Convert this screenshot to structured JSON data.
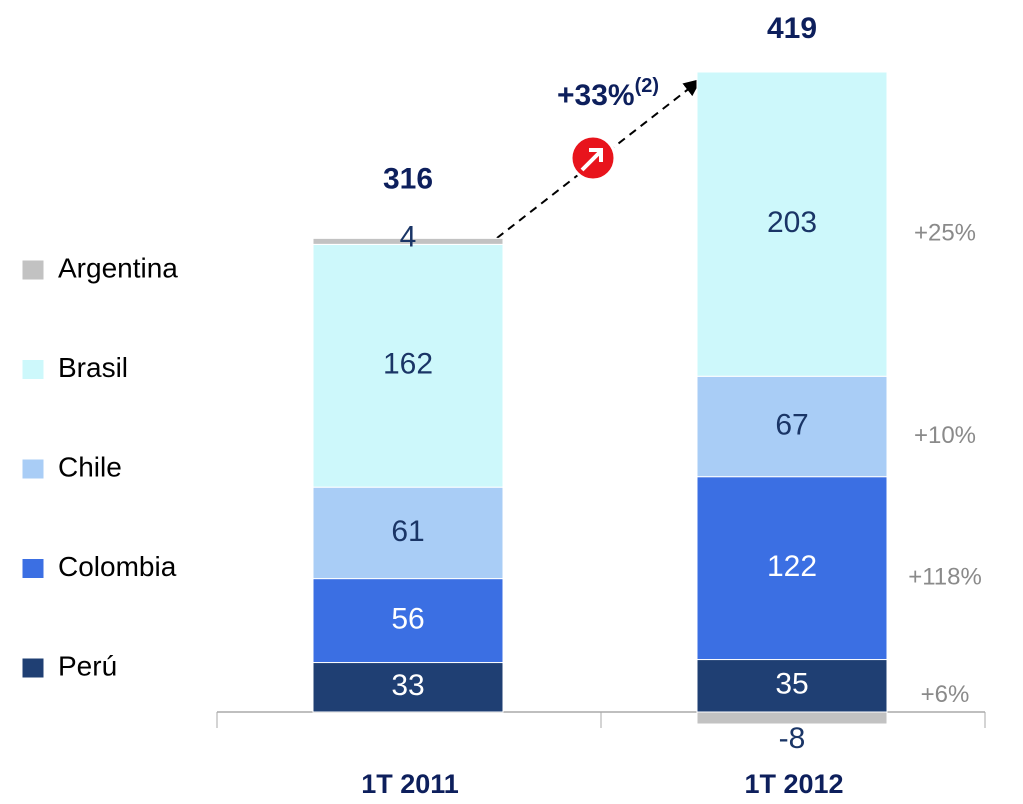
{
  "chart_data": {
    "type": "stacked_bar",
    "categories": [
      "1T 2011",
      "1T 2012"
    ],
    "series": [
      {
        "name": "Perú",
        "color": "#1f3f73",
        "values": [
          33,
          35
        ],
        "change": "+6%"
      },
      {
        "name": "Colombia",
        "color": "#3b6fe3",
        "values": [
          56,
          122
        ],
        "change": "+118%"
      },
      {
        "name": "Chile",
        "color": "#a9cdf6",
        "values": [
          61,
          67
        ],
        "change": "+10%"
      },
      {
        "name": "Brasil",
        "color": "#cdf8fb",
        "values": [
          162,
          203
        ],
        "change": "+25%"
      },
      {
        "name": "Argentina",
        "color": "#c2c2c2",
        "values": [
          4,
          -8
        ]
      }
    ],
    "totals": [
      316,
      419
    ],
    "annotation": {
      "text": "+33%",
      "note": "(2)"
    }
  }
}
